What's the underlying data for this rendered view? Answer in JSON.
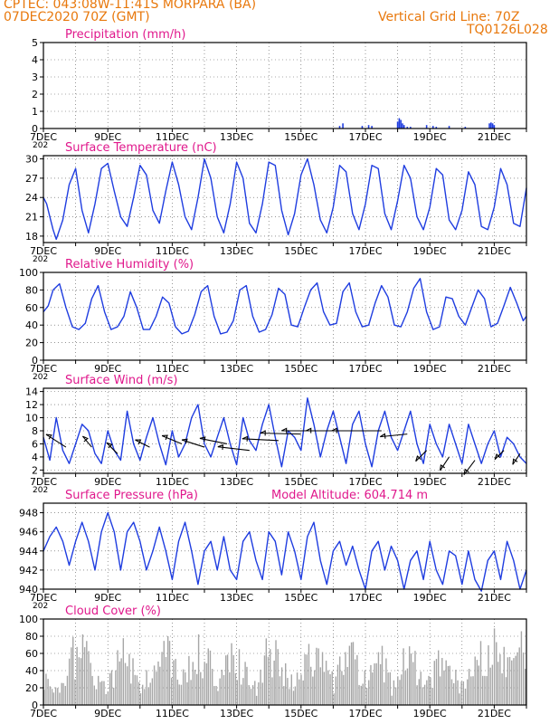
{
  "header": {
    "line1": "CPTEC:   043:08W-11:41S   MORPARA (BA)",
    "line2": "07DEC2020 70Z (GMT)",
    "grid_note": "Vertical Grid Line: 70Z",
    "code": "TQ0126L028"
  },
  "colors": {
    "header": "#e8780c",
    "title": "#e0188c",
    "series": "#1f3de0",
    "cloud": "#a6a6a6",
    "wind_arrow": "#000000",
    "axis": "#000000"
  },
  "xaxis": {
    "start_day": 7,
    "end_day": 22,
    "labels": [
      "7DEC",
      "9DEC",
      "11DEC",
      "13DEC",
      "15DEC",
      "17DEC",
      "19DEC",
      "21DEC"
    ],
    "label_days": [
      7,
      9,
      11,
      13,
      15,
      17,
      19,
      21
    ],
    "year_fragment": "202"
  },
  "panels": {
    "precip": {
      "title": "Precipitation (mm/h)"
    },
    "temp": {
      "title": "Surface Temperature (nC)"
    },
    "rh": {
      "title": "Relative Humidity (%)"
    },
    "wind": {
      "title": "Surface Wind (m/s)"
    },
    "press": {
      "title": "Surface Pressure (hPa)",
      "altitude": "Model Altitude: 604.714 m"
    },
    "cloud": {
      "title": "Cloud Cover (%)"
    }
  },
  "chart_data": [
    {
      "id": "precip",
      "type": "bar",
      "title": "Precipitation (mm/h)",
      "ylim": [
        0,
        5
      ],
      "yticks": [
        0,
        1,
        2,
        3,
        4,
        5
      ],
      "x": [
        16.2,
        16.3,
        16.9,
        17.1,
        17.2,
        18.0,
        18.05,
        18.1,
        18.15,
        18.2,
        18.3,
        18.4,
        18.9,
        19.1,
        19.2,
        19.6,
        20.1,
        20.85,
        20.9,
        20.95,
        21.0
      ],
      "values": [
        0.15,
        0.3,
        0.15,
        0.2,
        0.15,
        0.4,
        0.6,
        0.5,
        0.3,
        0.2,
        0.1,
        0.1,
        0.2,
        0.15,
        0.1,
        0.15,
        0.1,
        0.3,
        0.35,
        0.3,
        0.2
      ]
    },
    {
      "id": "temp",
      "type": "line",
      "title": "Surface Temperature (nC)",
      "ylim": [
        17,
        30.5
      ],
      "yticks": [
        18,
        21,
        24,
        27,
        30
      ],
      "x": [
        7.0,
        7.1,
        7.2,
        7.3,
        7.4,
        7.6,
        7.8,
        8.0,
        8.2,
        8.4,
        8.6,
        8.8,
        9.0,
        9.2,
        9.4,
        9.6,
        9.8,
        10.0,
        10.2,
        10.4,
        10.6,
        10.8,
        11.0,
        11.2,
        11.4,
        11.6,
        11.8,
        12.0,
        12.2,
        12.4,
        12.6,
        12.8,
        13.0,
        13.2,
        13.4,
        13.6,
        13.8,
        14.0,
        14.2,
        14.4,
        14.6,
        14.8,
        15.0,
        15.2,
        15.4,
        15.6,
        15.8,
        16.0,
        16.2,
        16.4,
        16.6,
        16.8,
        17.0,
        17.2,
        17.4,
        17.6,
        17.8,
        18.0,
        18.2,
        18.4,
        18.6,
        18.8,
        19.0,
        19.2,
        19.4,
        19.6,
        19.8,
        20.0,
        20.2,
        20.4,
        20.6,
        20.8,
        21.0,
        21.2,
        21.4,
        21.6,
        21.8,
        22.0
      ],
      "values": [
        24.0,
        23.0,
        21.0,
        19.0,
        17.5,
        20.5,
        26.0,
        28.5,
        22.0,
        18.5,
        23.0,
        28.5,
        29.3,
        25.0,
        21.0,
        19.5,
        24.0,
        29.0,
        27.5,
        22.0,
        20.0,
        25.0,
        29.5,
        26.0,
        21.0,
        19.0,
        24.0,
        30.0,
        27.0,
        21.0,
        18.5,
        23.0,
        29.5,
        27.0,
        20.0,
        18.5,
        23.0,
        29.5,
        29.0,
        22.0,
        18.2,
        21.5,
        27.5,
        30.0,
        26.0,
        20.5,
        18.5,
        22.5,
        29.0,
        28.0,
        21.5,
        19.0,
        23.0,
        29.0,
        28.5,
        21.5,
        19.0,
        23.5,
        29.0,
        27.0,
        21.0,
        19.0,
        22.5,
        28.5,
        27.5,
        20.5,
        19.0,
        22.0,
        28.0,
        26.0,
        19.5,
        19.0,
        22.5,
        28.5,
        26.0,
        20.0,
        19.5,
        25.5
      ]
    },
    {
      "id": "rh",
      "type": "line",
      "title": "Relative Humidity (%)",
      "ylim": [
        0,
        100
      ],
      "yticks": [
        0,
        20,
        40,
        60,
        80,
        100
      ],
      "x": [
        7.0,
        7.15,
        7.3,
        7.5,
        7.7,
        7.9,
        8.1,
        8.3,
        8.5,
        8.7,
        8.9,
        9.1,
        9.3,
        9.5,
        9.7,
        9.9,
        10.1,
        10.3,
        10.5,
        10.7,
        10.9,
        11.1,
        11.3,
        11.5,
        11.7,
        11.9,
        12.1,
        12.3,
        12.5,
        12.7,
        12.9,
        13.1,
        13.3,
        13.5,
        13.7,
        13.9,
        14.1,
        14.3,
        14.5,
        14.7,
        14.9,
        15.1,
        15.3,
        15.5,
        15.7,
        15.9,
        16.1,
        16.3,
        16.5,
        16.7,
        16.9,
        17.1,
        17.3,
        17.5,
        17.7,
        17.9,
        18.1,
        18.3,
        18.5,
        18.7,
        18.9,
        19.1,
        19.3,
        19.5,
        19.7,
        19.9,
        20.1,
        20.3,
        20.5,
        20.7,
        20.9,
        21.1,
        21.3,
        21.5,
        21.7,
        21.9,
        22.0
      ],
      "values": [
        55,
        62,
        80,
        87,
        60,
        38,
        35,
        42,
        70,
        85,
        55,
        35,
        38,
        50,
        78,
        60,
        35,
        35,
        50,
        72,
        65,
        38,
        30,
        33,
        52,
        78,
        85,
        50,
        30,
        32,
        45,
        80,
        85,
        50,
        32,
        35,
        52,
        82,
        75,
        40,
        38,
        60,
        80,
        88,
        55,
        40,
        42,
        78,
        88,
        55,
        38,
        40,
        65,
        85,
        72,
        40,
        38,
        55,
        82,
        93,
        55,
        35,
        38,
        72,
        70,
        50,
        40,
        60,
        80,
        70,
        38,
        42,
        62,
        83,
        65,
        45,
        50
      ]
    },
    {
      "id": "wind",
      "type": "line",
      "title": "Surface Wind (m/s)",
      "ylim": [
        1.5,
        14.5
      ],
      "yticks": [
        2,
        4,
        6,
        8,
        10,
        12,
        14
      ],
      "x": [
        7.0,
        7.2,
        7.4,
        7.6,
        7.8,
        8.0,
        8.2,
        8.4,
        8.6,
        8.8,
        9.0,
        9.2,
        9.4,
        9.6,
        9.8,
        10.0,
        10.2,
        10.4,
        10.6,
        10.8,
        11.0,
        11.2,
        11.4,
        11.6,
        11.8,
        12.0,
        12.2,
        12.4,
        12.6,
        12.8,
        13.0,
        13.2,
        13.4,
        13.6,
        13.8,
        14.0,
        14.2,
        14.4,
        14.6,
        14.8,
        15.0,
        15.2,
        15.4,
        15.6,
        15.8,
        16.0,
        16.2,
        16.4,
        16.6,
        16.8,
        17.0,
        17.2,
        17.4,
        17.6,
        17.8,
        18.0,
        18.2,
        18.4,
        18.6,
        18.8,
        19.0,
        19.2,
        19.4,
        19.6,
        19.8,
        20.0,
        20.2,
        20.4,
        20.6,
        20.8,
        21.0,
        21.2,
        21.4,
        21.6,
        21.8,
        22.0
      ],
      "values": [
        7,
        3.5,
        10,
        5,
        3,
        6,
        9,
        8,
        4.5,
        3,
        8,
        5,
        3.5,
        11,
        6,
        3.5,
        7,
        10,
        6,
        2.8,
        8,
        4,
        6,
        10,
        12,
        6,
        4,
        7,
        10,
        6,
        2.8,
        10,
        6.5,
        5,
        9,
        12,
        7,
        2.5,
        8,
        7,
        5,
        13,
        9,
        4,
        8,
        11,
        7,
        3,
        9,
        11,
        6,
        2.5,
        8,
        11,
        7,
        5,
        8,
        11,
        6,
        3,
        9,
        6,
        4,
        9,
        6,
        3,
        9,
        6,
        3,
        6,
        8,
        4,
        7,
        6,
        4,
        3
      ]
    },
    {
      "id": "wind_arrows",
      "type": "scatter",
      "title": "Surface Wind (m/s)",
      "x": [
        7.7,
        8.5,
        9.3,
        10.3,
        11.3,
        12.0,
        12.7,
        13.4,
        14.3,
        15.0,
        15.8,
        16.7,
        17.5,
        18.3,
        18.9,
        19.6,
        20.4,
        21.3,
        21.8
      ],
      "speed": [
        5.5,
        5.5,
        4.5,
        5.5,
        6,
        5.5,
        6,
        5,
        6.5,
        7.5,
        8,
        8,
        8,
        7.5,
        5,
        4,
        3.5,
        5,
        4.5
      ],
      "dx": [
        -22,
        -10,
        -12,
        -16,
        -22,
        -25,
        -30,
        -35,
        -40,
        -45,
        -50,
        -55,
        -55,
        -30,
        -12,
        -10,
        -12,
        -10,
        -8
      ],
      "dy": [
        -14,
        -12,
        -12,
        -8,
        -9,
        -8,
        -6,
        -4,
        -2,
        -1,
        0,
        0,
        0,
        3,
        12,
        15,
        16,
        10,
        12
      ]
    },
    {
      "id": "press",
      "type": "line",
      "title": "Surface Pressure (hPa)",
      "ylim": [
        940,
        949
      ],
      "yticks": [
        940,
        942,
        944,
        946,
        948
      ],
      "x": [
        7.0,
        7.2,
        7.4,
        7.6,
        7.8,
        8.0,
        8.2,
        8.4,
        8.6,
        8.8,
        9.0,
        9.2,
        9.4,
        9.6,
        9.8,
        10.0,
        10.2,
        10.4,
        10.6,
        10.8,
        11.0,
        11.2,
        11.4,
        11.6,
        11.8,
        12.0,
        12.2,
        12.4,
        12.6,
        12.8,
        13.0,
        13.2,
        13.4,
        13.6,
        13.8,
        14.0,
        14.2,
        14.4,
        14.6,
        14.8,
        15.0,
        15.2,
        15.4,
        15.6,
        15.8,
        16.0,
        16.2,
        16.4,
        16.6,
        16.8,
        17.0,
        17.2,
        17.4,
        17.6,
        17.8,
        18.0,
        18.2,
        18.4,
        18.6,
        18.8,
        19.0,
        19.2,
        19.4,
        19.6,
        19.8,
        20.0,
        20.2,
        20.4,
        20.6,
        20.8,
        21.0,
        21.2,
        21.4,
        21.6,
        21.8,
        22.0
      ],
      "values": [
        944,
        945.5,
        946.5,
        945,
        942.5,
        945,
        947,
        945,
        942,
        946,
        948,
        946,
        942,
        946,
        947,
        945,
        942,
        944,
        946.5,
        944,
        941,
        945,
        947,
        944,
        940.5,
        944,
        945,
        942,
        945.5,
        942,
        941,
        945,
        946,
        943,
        941,
        946,
        945,
        941.5,
        946,
        944,
        941,
        945.5,
        947,
        943,
        940.5,
        944,
        945,
        942.5,
        944.5,
        942,
        940,
        944,
        945,
        942,
        944.5,
        943,
        940,
        943,
        944,
        941,
        945,
        942,
        940.5,
        944,
        943.5,
        940.5,
        944,
        941,
        939.8,
        943,
        944,
        941,
        945,
        943,
        940,
        942
      ]
    },
    {
      "id": "cloud",
      "type": "bar",
      "title": "Cloud Cover (%)",
      "ylim": [
        0,
        100
      ],
      "yticks": [
        0,
        20,
        40,
        60,
        80,
        100
      ],
      "x": [
        7.0,
        7.3,
        7.6,
        7.9,
        8.2,
        8.5,
        8.8,
        9.1,
        9.4,
        9.7,
        10.0,
        10.3,
        10.6,
        10.9,
        11.2,
        11.5,
        11.8,
        12.1,
        12.4,
        12.7,
        13.0,
        13.3,
        13.6,
        13.9,
        14.2,
        14.5,
        14.8,
        15.1,
        15.4,
        15.7,
        16.0,
        16.3,
        16.6,
        16.9,
        17.2,
        17.5,
        17.8,
        18.1,
        18.4,
        18.7,
        19.0,
        19.3,
        19.6,
        19.9,
        20.2,
        20.5,
        20.8,
        21.1,
        21.4,
        21.7,
        22.0
      ],
      "values": [
        40,
        25,
        35,
        80,
        85,
        60,
        30,
        45,
        85,
        70,
        30,
        50,
        80,
        85,
        35,
        60,
        90,
        70,
        40,
        85,
        80,
        45,
        30,
        80,
        85,
        50,
        35,
        70,
        85,
        60,
        35,
        75,
        85,
        40,
        55,
        80,
        30,
        65,
        80,
        55,
        35,
        75,
        60,
        30,
        50,
        85,
        88,
        90,
        92,
        93,
        90
      ]
    }
  ]
}
